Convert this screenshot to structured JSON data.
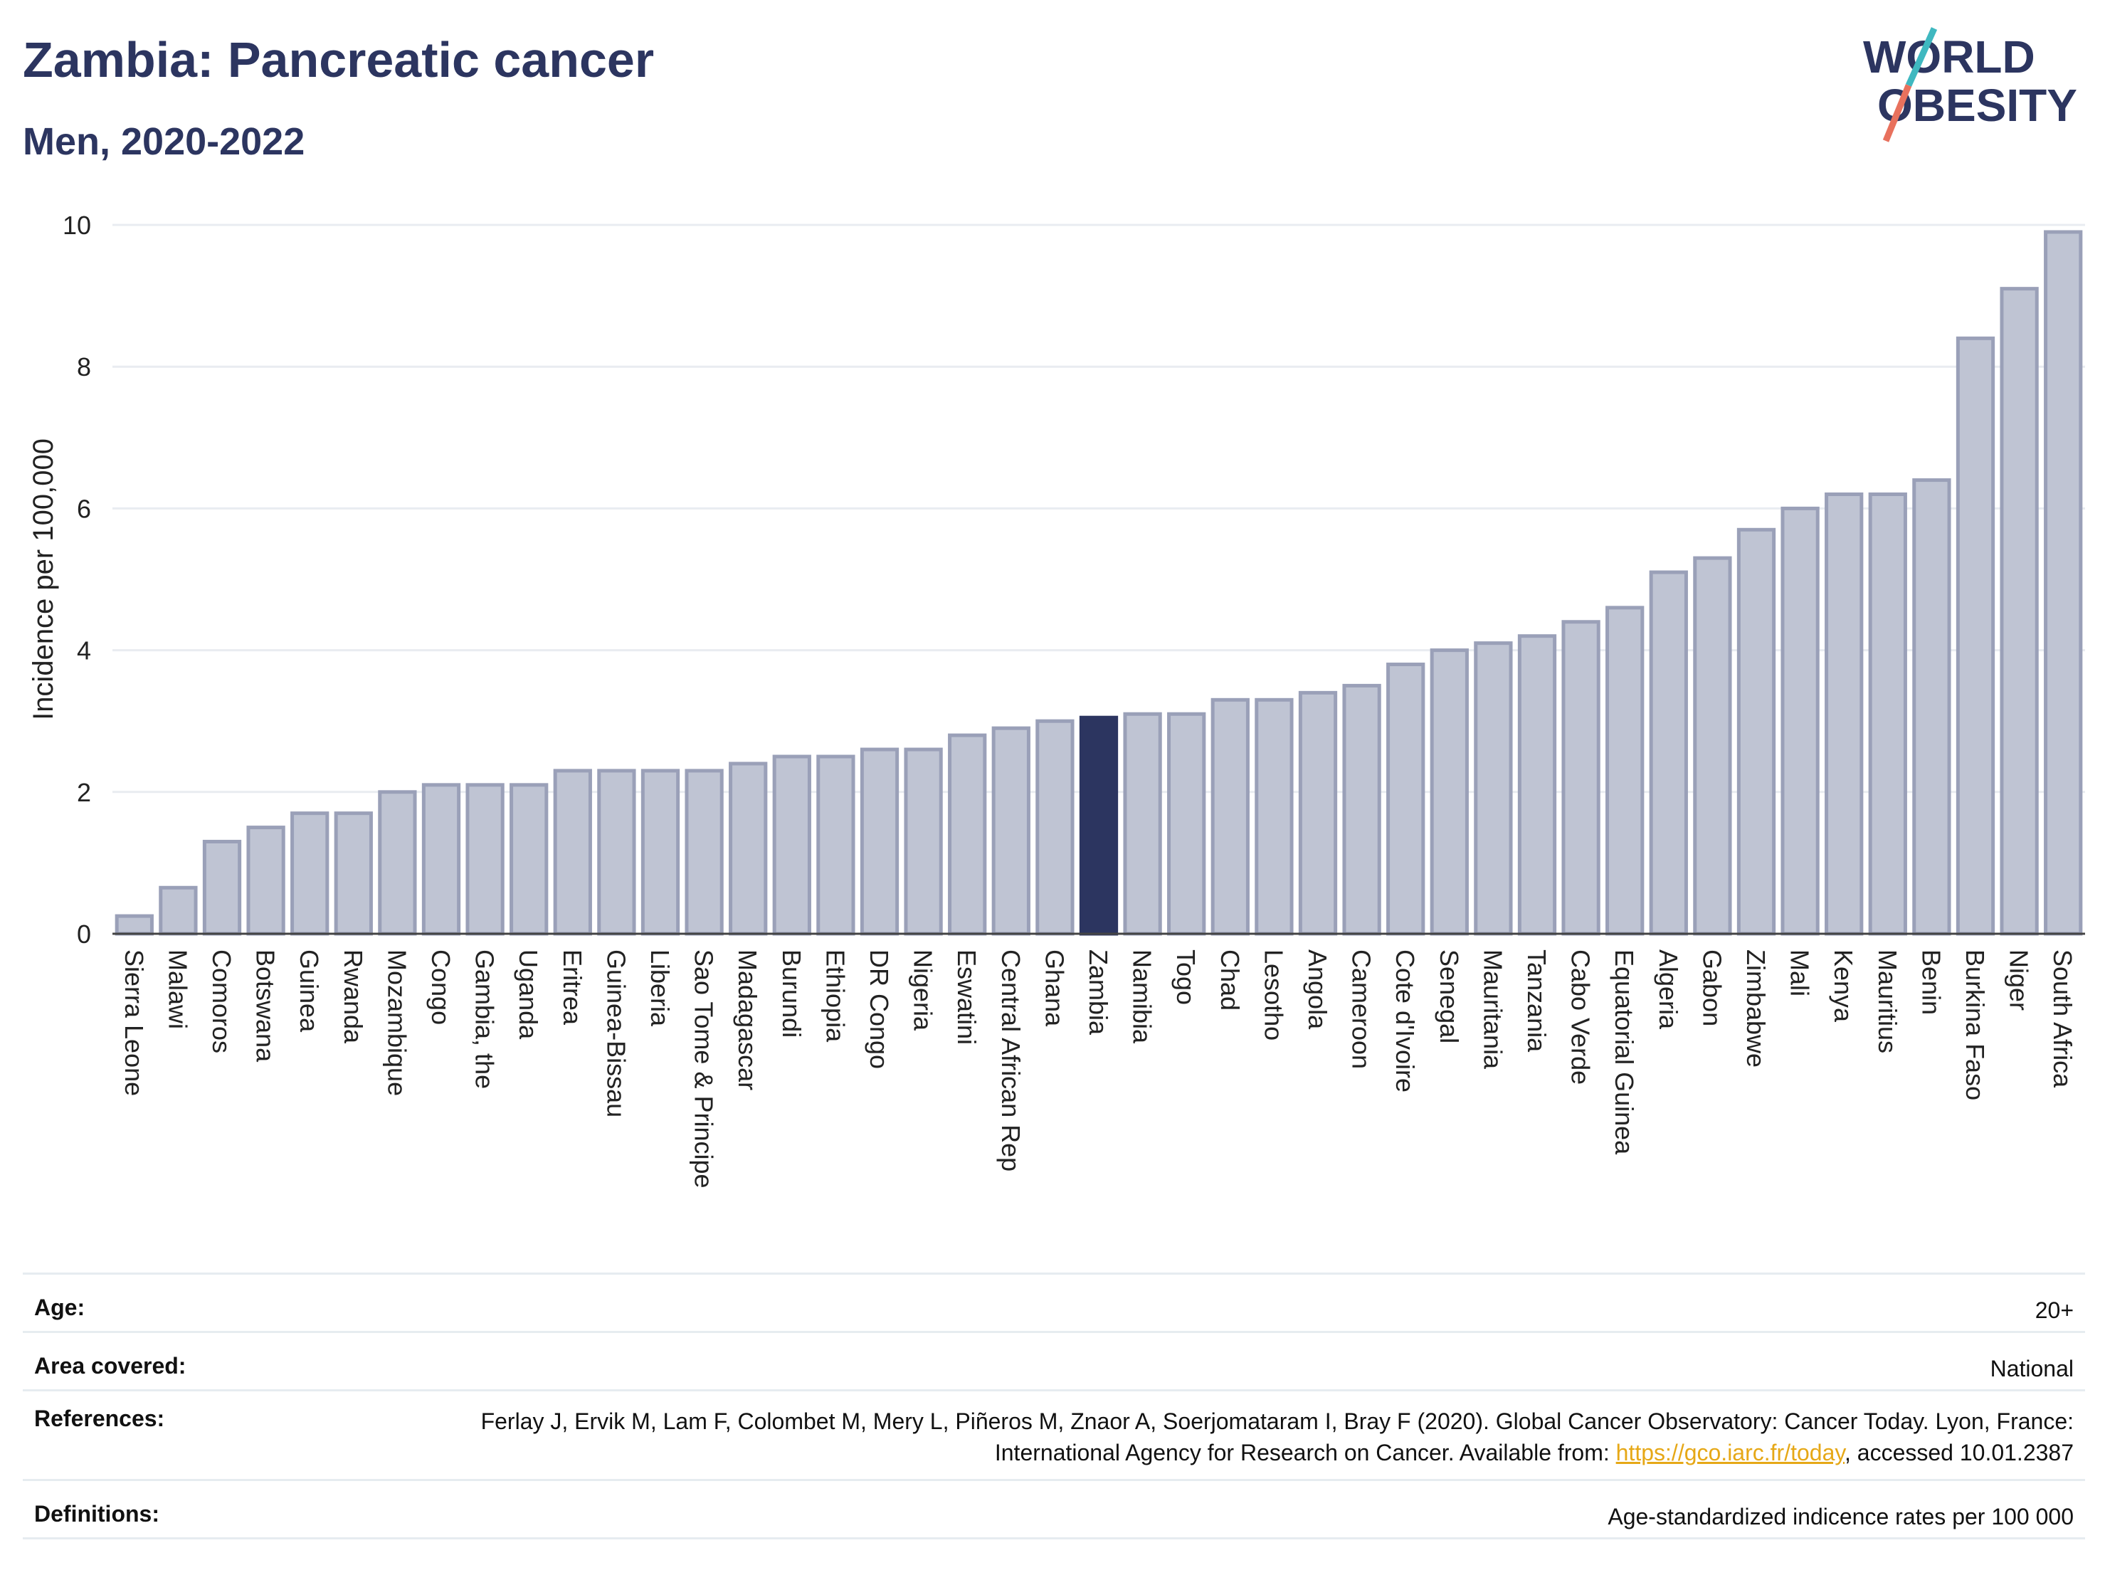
{
  "header": {
    "title": "Zambia: Pancreatic cancer",
    "subtitle": "Men, 2020-2022"
  },
  "logo": {
    "line1": "WORLD",
    "line2": "OBESITY"
  },
  "colors": {
    "highlight_bar": "#2c3560",
    "default_bar": "#bfc4d3",
    "default_bar_border": "#9aa0b8",
    "title": "#2c3560",
    "grid": "#e9ecf1",
    "link": "#e6a817",
    "logo_teal": "#3fb8c0",
    "logo_coral": "#e8715d"
  },
  "chart_data": {
    "type": "bar",
    "title": "Zambia: Pancreatic cancer",
    "subtitle": "Men, 2020-2022",
    "xlabel": "",
    "ylabel": "Incidence per 100,000",
    "ylim": [
      0,
      10
    ],
    "yticks": [
      0,
      2,
      4,
      6,
      8,
      10
    ],
    "grid": true,
    "highlight": "Zambia",
    "categories": [
      "Sierra Leone",
      "Malawi",
      "Comoros",
      "Botswana",
      "Guinea",
      "Rwanda",
      "Mozambique",
      "Congo",
      "Gambia, the",
      "Uganda",
      "Eritrea",
      "Guinea-Bissau",
      "Liberia",
      "Sao Tome & Principe",
      "Madagascar",
      "Burundi",
      "Ethiopia",
      "DR Congo",
      "Nigeria",
      "Eswatini",
      "Central African Rep",
      "Ghana",
      "Zambia",
      "Namibia",
      "Togo",
      "Chad",
      "Lesotho",
      "Angola",
      "Cameroon",
      "Cote d'Ivoire",
      "Senegal",
      "Mauritania",
      "Tanzania",
      "Cabo Verde",
      "Equatorial Guinea",
      "Algeria",
      "Gabon",
      "Zimbabwe",
      "Mali",
      "Kenya",
      "Mauritius",
      "Benin",
      "Burkina Faso",
      "Niger",
      "South Africa"
    ],
    "values": [
      0.25,
      0.65,
      1.3,
      1.5,
      1.7,
      1.7,
      2.0,
      2.1,
      2.1,
      2.1,
      2.3,
      2.3,
      2.3,
      2.3,
      2.4,
      2.5,
      2.5,
      2.6,
      2.6,
      2.8,
      2.9,
      3.0,
      3.05,
      3.1,
      3.1,
      3.3,
      3.3,
      3.4,
      3.5,
      3.8,
      4.0,
      4.1,
      4.2,
      4.4,
      4.6,
      5.1,
      5.3,
      5.7,
      6.0,
      6.2,
      6.2,
      6.4,
      8.4,
      9.1,
      9.9
    ]
  },
  "info": {
    "age_label": "Age:",
    "age_value": "20+",
    "area_label": "Area covered:",
    "area_value": "National",
    "references_label": "References:",
    "references_text": "Ferlay J, Ervik M, Lam F, Colombet M, Mery L, Piñeros M, Znaor A, Soerjomataram I, Bray F (2020). Global Cancer Observatory: Cancer Today. Lyon, France: International Agency for Research on Cancer. Available from: ",
    "references_link": "https://gco.iarc.fr/today",
    "references_suffix": ", accessed 10.01.2387",
    "definitions_label": "Definitions:",
    "definitions_value": "Age-standardized indicence rates per 100 000"
  }
}
